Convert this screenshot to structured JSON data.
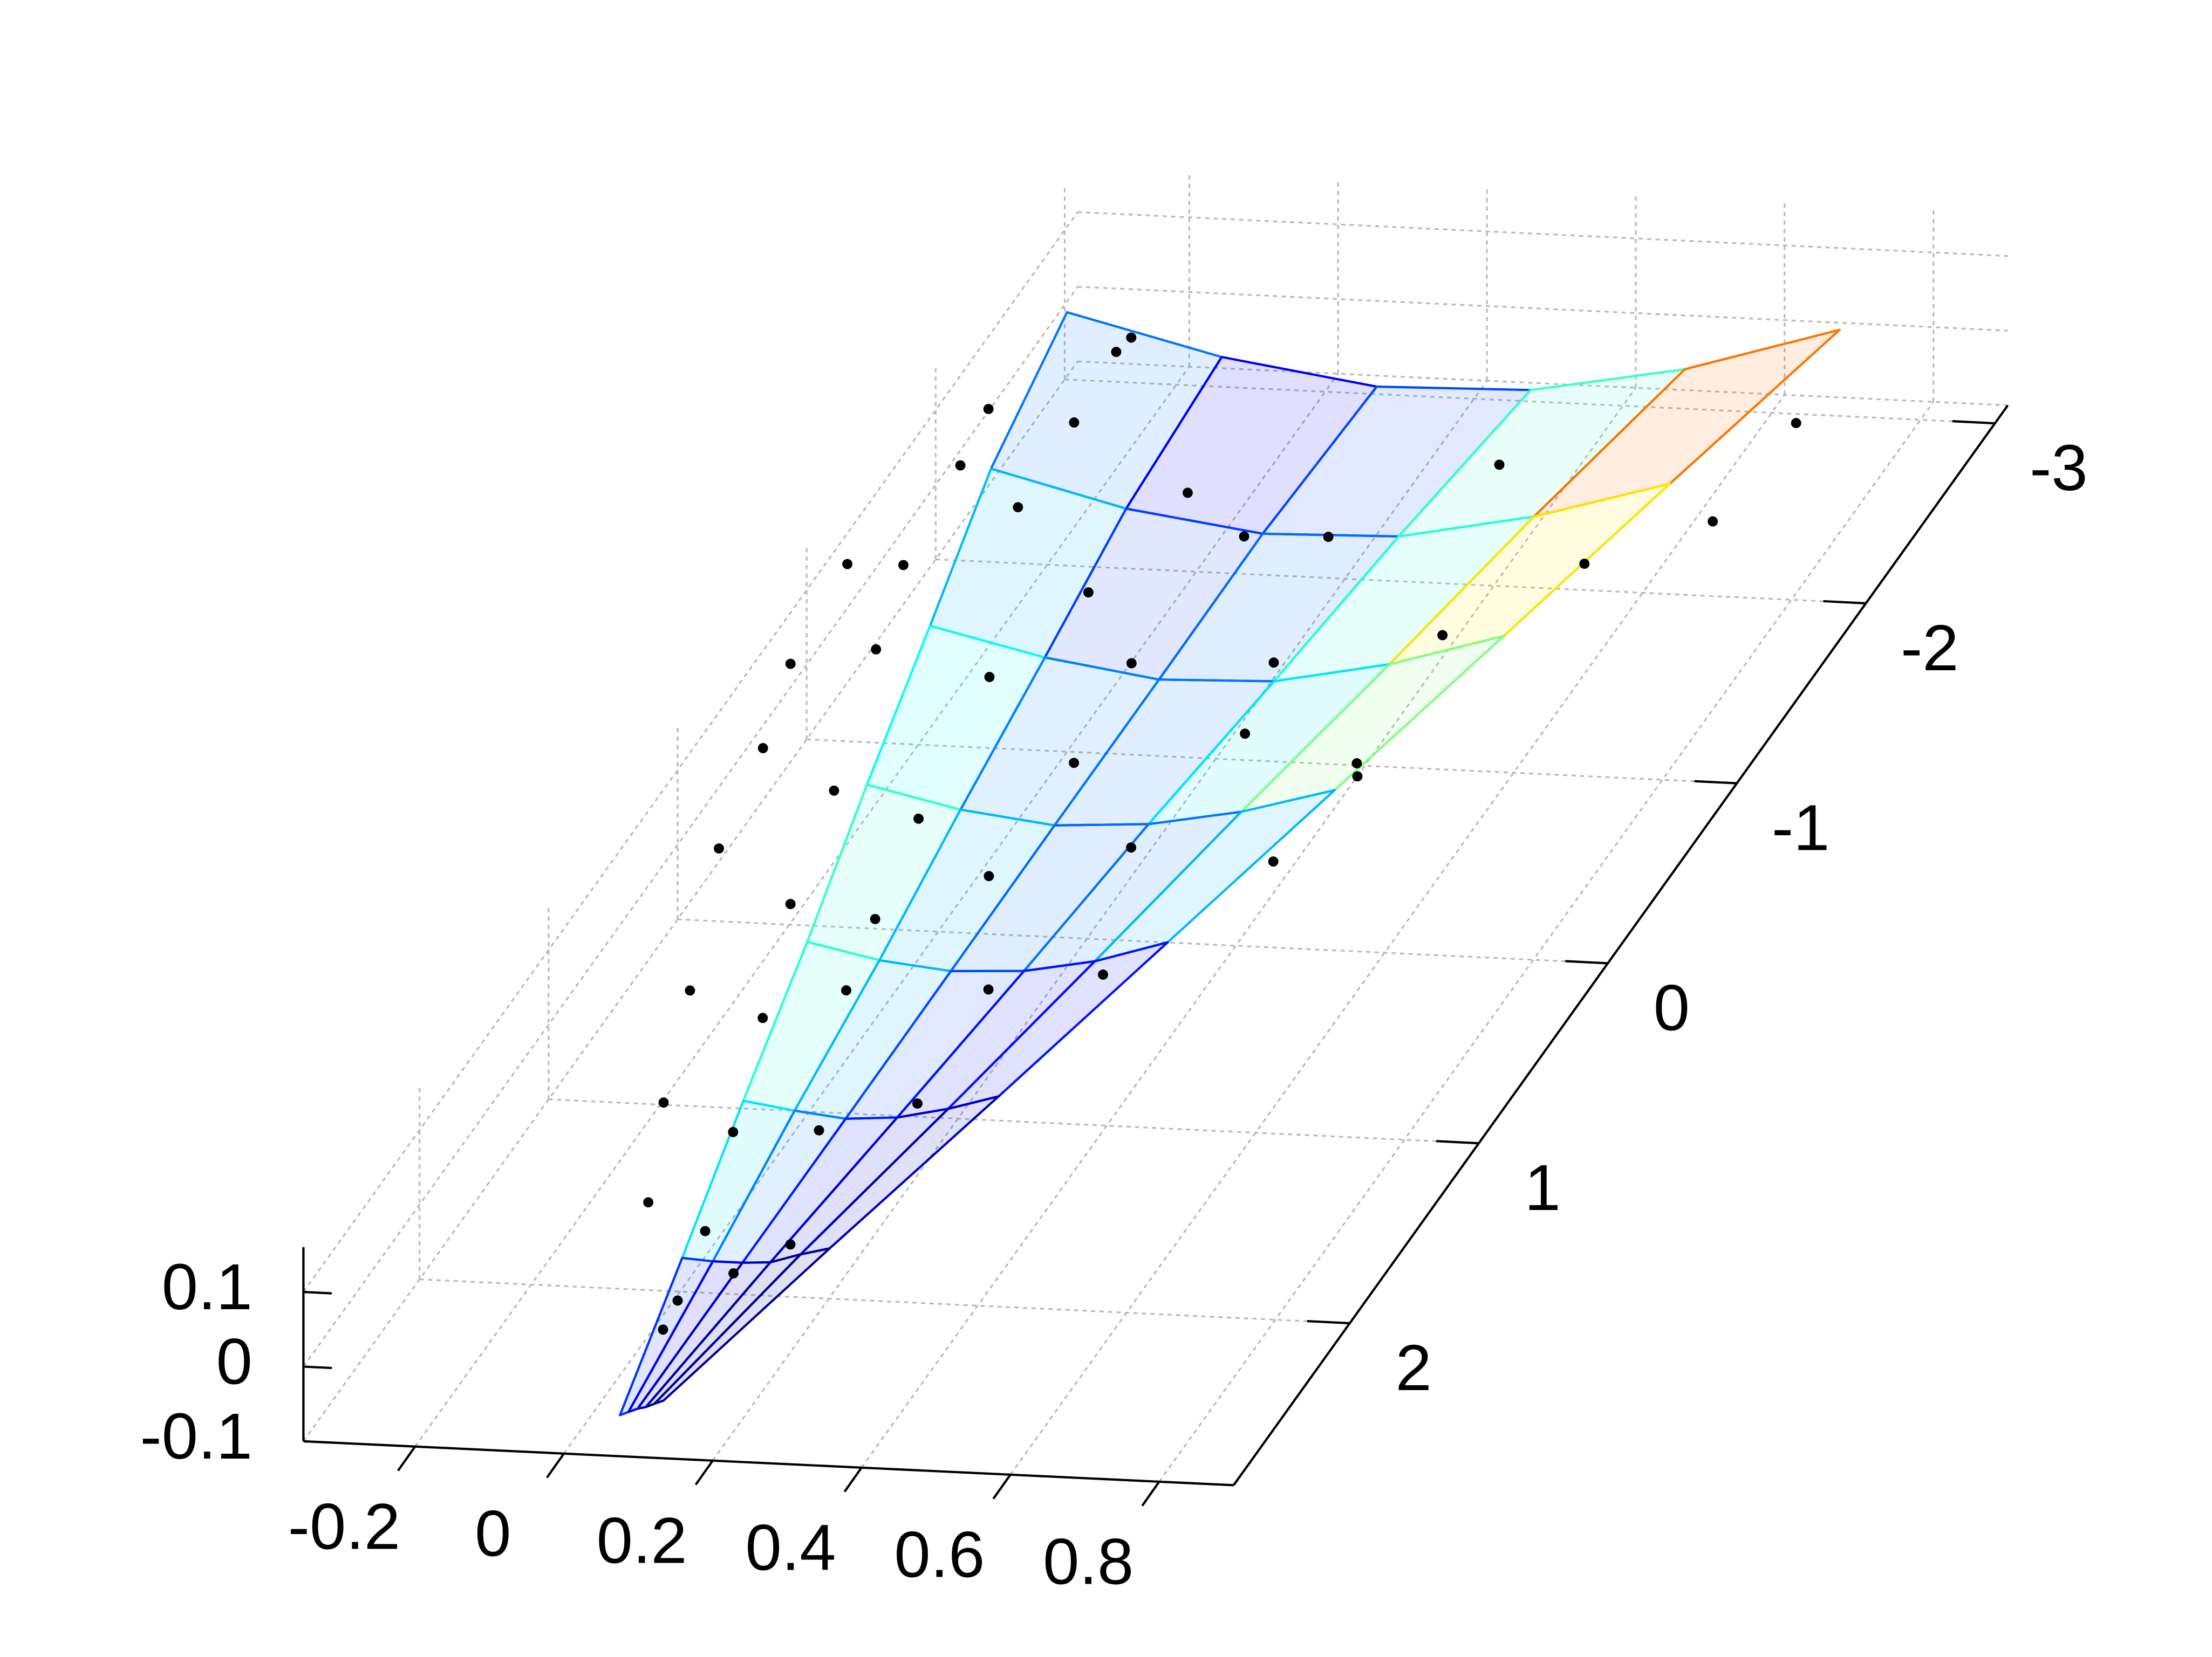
{
  "chart_data": {
    "type": "surface",
    "xlim": [
      -0.35,
      0.9
    ],
    "ylim": [
      -3.1,
      2.9
    ],
    "zlim": [
      -0.1,
      0.16
    ],
    "xticks": [
      -0.2,
      0,
      0.2,
      0.4,
      0.6,
      0.8
    ],
    "yticks": [
      -3,
      -2,
      -1,
      0,
      1,
      2
    ],
    "zticks": [
      -0.1,
      0,
      0.1
    ],
    "grid": true,
    "colormap": "jet",
    "clim": [
      -0.08,
      0.15
    ],
    "surface": {
      "x": [
        [
          -0.34,
          -0.139,
          0.09,
          0.321,
          0.558,
          0.785
        ],
        [
          -0.293,
          -0.108,
          0.086,
          0.293,
          0.492,
          0.687
        ],
        [
          -0.212,
          -0.061,
          0.094,
          0.266,
          0.428,
          0.585
        ],
        [
          -0.139,
          -0.015,
          0.101,
          0.229,
          0.352,
          0.474
        ],
        [
          -0.07,
          0.027,
          0.109,
          0.19,
          0.273,
          0.357
        ],
        [
          -0.012,
          0.05,
          0.103,
          0.155,
          0.206,
          0.26
        ],
        [
          0.041,
          0.07,
          0.096,
          0.118,
          0.143,
          0.175
        ],
        [
          0.058,
          0.066,
          0.068,
          0.077,
          0.085,
          0.094
        ]
      ],
      "y": [
        [
          -2.96,
          -3.0,
          -2.88,
          -2.74,
          -2.57,
          -2.46
        ],
        [
          -2.1,
          -2.08,
          -2.02,
          -1.88,
          -1.78,
          -1.71
        ],
        [
          -1.16,
          -1.18,
          -1.17,
          -1.07,
          -1.03,
          -1.01
        ],
        [
          -0.25,
          -0.26,
          -0.32,
          -0.31,
          -0.32,
          -0.34
        ],
        [
          0.61,
          0.61,
          0.53,
          0.43,
          0.36,
          0.28
        ],
        [
          1.44,
          1.4,
          1.31,
          1.21,
          1.11,
          1.03
        ],
        [
          2.22,
          2.15,
          2.07,
          1.98,
          1.89,
          1.85
        ],
        [
          2.8,
          2.78,
          2.72,
          2.71,
          2.69,
          2.67
        ]
      ],
      "z": [
        [
          0,
          -0.06,
          -0.06,
          -0.02,
          0.06,
          0.15
        ],
        [
          0,
          -0.04,
          -0.05,
          -0.01,
          0.05,
          0.12
        ],
        [
          0.02,
          -0.02,
          -0.04,
          -0.01,
          0.03,
          0.08
        ],
        [
          0.03,
          0,
          -0.03,
          -0.02,
          0,
          0.03
        ],
        [
          0.03,
          0.01,
          -0.02,
          -0.04,
          -0.04,
          -0.03
        ],
        [
          0.02,
          0,
          -0.03,
          -0.05,
          -0.06,
          -0.06
        ],
        [
          0,
          -0.02,
          -0.04,
          -0.06,
          -0.07,
          -0.07
        ],
        [
          -0.07,
          -0.07,
          -0.08,
          -0.08,
          -0.08,
          -0.08
        ]
      ]
    },
    "scatter": {
      "color": "#000000",
      "x": [
        -0.219,
        -0.253,
        -0.338,
        -0.242,
        -0.322,
        -0.236,
        -0.001,
        -0.331,
        -0.349,
        -0.065,
        0.113,
        0.195,
        0.378,
        0.553,
        0.708,
        0.697,
        -0.344,
        -0.288,
        -0.087,
        0.057,
        0.269,
        0.435,
        -0.315,
        -0.211,
        -0.047,
        0.075,
        0.298,
        0.443,
        -0.279,
        -0.162,
        -0.01,
        0.07,
        0.256,
        -0.212,
        -0.064,
        -0.009,
        0.203,
        0.31,
        -0.114,
        -0.024,
        0.114,
        0.189,
        -0.041,
        0.032,
        0.183,
        0.061,
        0.136,
        0.069,
        0.454,
        0.456
      ],
      "y": [
        -2.76,
        -2.84,
        -2.34,
        -2.45,
        -2.03,
        -1.98,
        -1.94,
        -1.64,
        -1.31,
        -1.54,
        -1.72,
        -1.9,
        -2.17,
        -1.82,
        -1.92,
        -2.63,
        -0.84,
        -1.18,
        -0.9,
        -1.17,
        -1.05,
        -1.4,
        -0.46,
        -0.41,
        -0.12,
        -0.62,
        -0.66,
        -0.69,
        0.09,
        0.21,
        0.43,
        0.01,
        -0.02,
        0.7,
        0.99,
        0.66,
        0.78,
        0.51,
        1.47,
        1.45,
        1.58,
        1.25,
        2.01,
        1.99,
        2.2,
        2.37,
        2.37,
        2.53,
        0.02,
        -0.62
      ],
      "z": [
        0.02,
        -0.02,
        0.02,
        -0.02,
        0.02,
        -0.02,
        0.02,
        -0.02,
        0.06,
        -0.02,
        0.02,
        -0.02,
        0.02,
        -0.02,
        0.02,
        -0.02,
        0.04,
        -0.02,
        0.02,
        -0.02,
        0.02,
        -0.02,
        0.02,
        -0.02,
        0.02,
        -0.02,
        0.02,
        -0.02,
        0.02,
        -0.02,
        0.02,
        -0.02,
        0.02,
        -0.02,
        0.02,
        -0.02,
        0.02,
        -0.02,
        0.02,
        -0.02,
        0.02,
        -0.02,
        0.02,
        -0.02,
        0.02,
        -0.02,
        0.02,
        -0.02,
        0.02,
        -0.02
      ]
    }
  }
}
